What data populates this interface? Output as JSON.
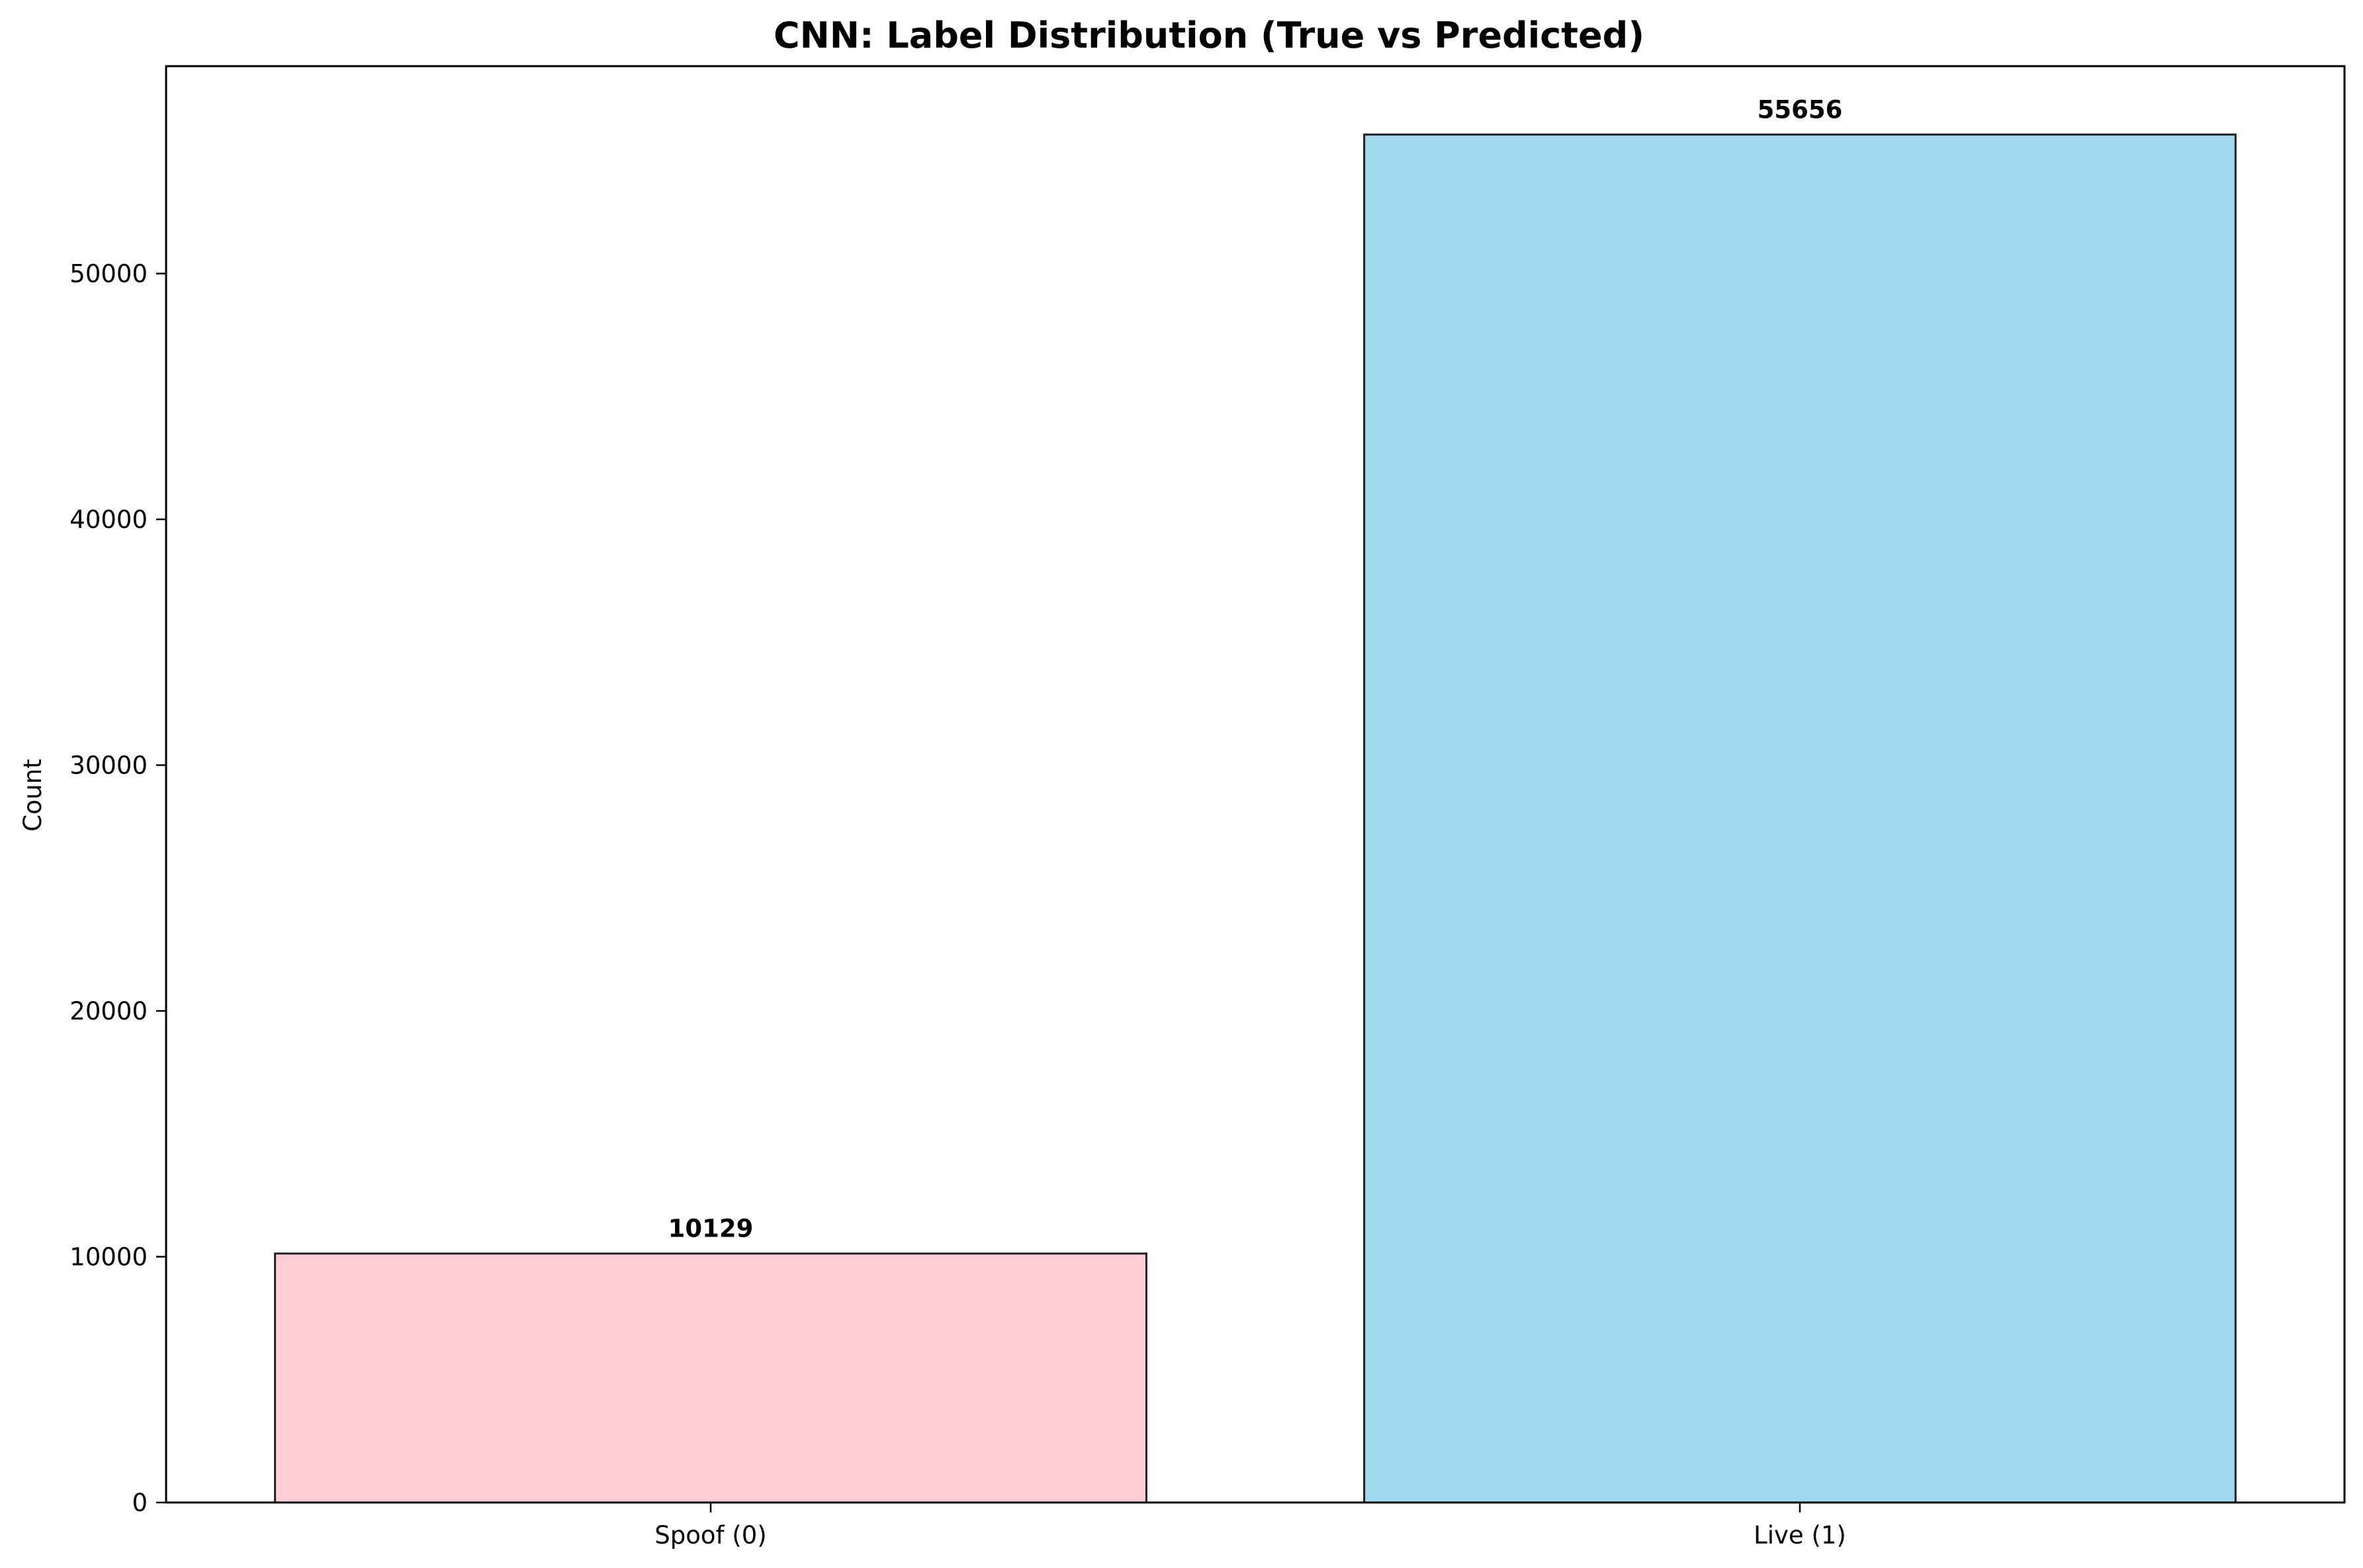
{
  "chart_data": {
    "type": "bar",
    "title": "CNN: Label Distribution (True vs Predicted)",
    "xlabel": "",
    "ylabel": "Count",
    "categories": [
      "Spoof (0)",
      "Live (1)"
    ],
    "values": [
      10129,
      55656
    ],
    "data_labels": [
      "10129",
      "55656"
    ],
    "colors": [
      "#ffc0cb",
      "#87ceeb"
    ],
    "bar_edge_color": "#222222",
    "bar_alpha": 0.8,
    "ylim": [
      0,
      58438
    ],
    "yticks": [
      0,
      10000,
      20000,
      30000,
      40000,
      50000
    ],
    "ytick_labels": [
      "0",
      "10000",
      "20000",
      "30000",
      "40000",
      "50000"
    ],
    "grid": false,
    "legend": false
  }
}
